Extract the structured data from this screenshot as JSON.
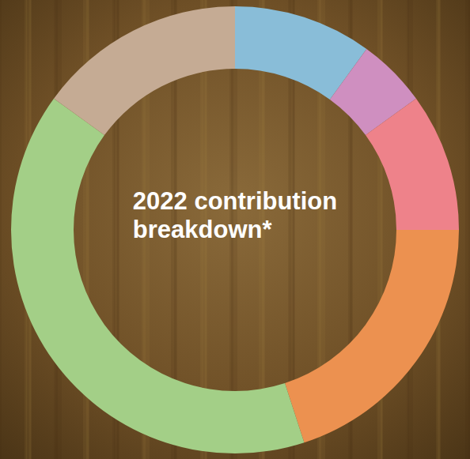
{
  "chart_data": {
    "type": "donut",
    "title": "2022 contribution breakdown*",
    "values": [
      10,
      5,
      10,
      20,
      40,
      15
    ],
    "colors": [
      "#89bdd8",
      "#cf8fc0",
      "#ee828a",
      "#ec9150",
      "#a3cf87",
      "#c5ab94"
    ]
  }
}
